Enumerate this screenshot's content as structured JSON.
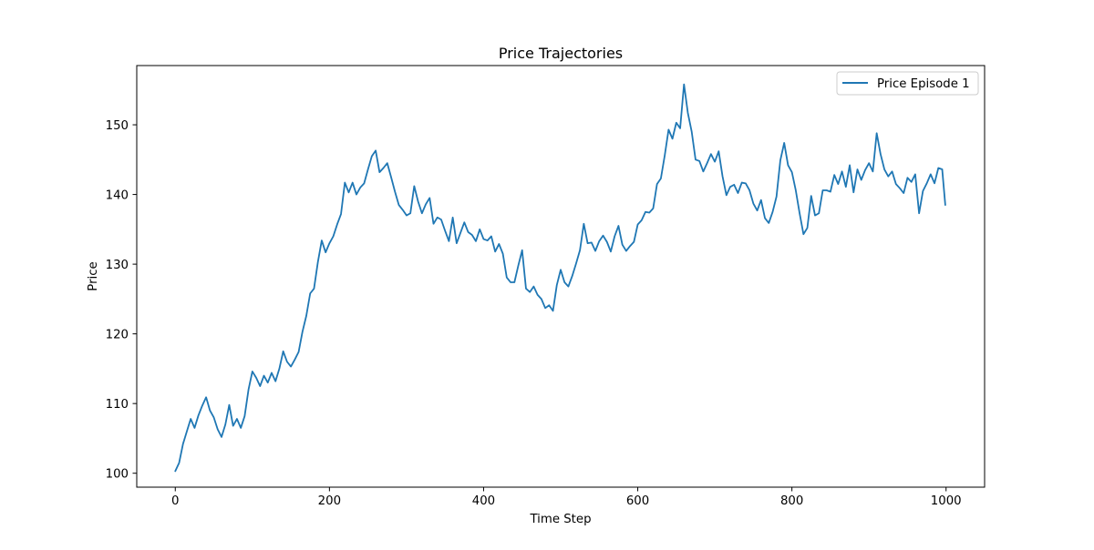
{
  "chart_data": {
    "type": "line",
    "title": "Price Trajectories",
    "xlabel": "Time Step",
    "ylabel": "Price",
    "xlim": [
      -50,
      1050
    ],
    "ylim": [
      98,
      158.5
    ],
    "x_ticks": [
      0,
      200,
      400,
      600,
      800,
      1000
    ],
    "y_ticks": [
      100,
      110,
      120,
      130,
      140,
      150
    ],
    "x_tick_labels": [
      "0",
      "200",
      "400",
      "600",
      "800",
      "1000"
    ],
    "y_tick_labels": [
      "100",
      "110",
      "120",
      "130",
      "140",
      "150"
    ],
    "grid": false,
    "legend_position": "upper right",
    "series": [
      {
        "name": "Price Episode 1",
        "color": "#1f77b4",
        "x": [
          0,
          5,
          10,
          15,
          20,
          25,
          30,
          35,
          40,
          45,
          50,
          55,
          60,
          65,
          70,
          75,
          80,
          85,
          90,
          95,
          100,
          105,
          110,
          115,
          120,
          125,
          130,
          135,
          140,
          145,
          150,
          155,
          160,
          165,
          170,
          175,
          180,
          185,
          190,
          195,
          200,
          205,
          210,
          215,
          220,
          225,
          230,
          235,
          240,
          245,
          250,
          255,
          260,
          265,
          270,
          275,
          280,
          285,
          290,
          295,
          300,
          305,
          310,
          315,
          320,
          325,
          330,
          335,
          340,
          345,
          350,
          355,
          360,
          365,
          370,
          375,
          380,
          385,
          390,
          395,
          400,
          405,
          410,
          415,
          420,
          425,
          430,
          435,
          440,
          445,
          450,
          455,
          460,
          465,
          470,
          475,
          480,
          485,
          490,
          495,
          500,
          505,
          510,
          515,
          520,
          525,
          530,
          535,
          540,
          545,
          550,
          555,
          560,
          565,
          570,
          575,
          580,
          585,
          590,
          595,
          600,
          605,
          610,
          615,
          620,
          625,
          630,
          635,
          640,
          645,
          650,
          655,
          660,
          665,
          670,
          675,
          680,
          685,
          690,
          695,
          700,
          705,
          710,
          715,
          720,
          725,
          730,
          735,
          740,
          745,
          750,
          755,
          760,
          765,
          770,
          775,
          780,
          785,
          790,
          795,
          800,
          805,
          810,
          815,
          820,
          825,
          830,
          835,
          840,
          845,
          850,
          855,
          860,
          865,
          870,
          875,
          880,
          885,
          890,
          895,
          900,
          905,
          910,
          915,
          920,
          925,
          930,
          935,
          940,
          945,
          950,
          955,
          960,
          965,
          970,
          975,
          980,
          985,
          990,
          995,
          999
        ],
        "y": [
          100.3,
          101.5,
          104.2,
          106.0,
          107.8,
          106.5,
          108.3,
          109.7,
          110.9,
          109.0,
          108.0,
          106.3,
          105.2,
          107.0,
          109.8,
          106.8,
          107.8,
          106.5,
          108.2,
          112.0,
          114.6,
          113.7,
          112.5,
          114.0,
          113.0,
          114.4,
          113.2,
          115.0,
          117.5,
          116.0,
          115.3,
          116.3,
          117.4,
          120.3,
          122.6,
          125.8,
          126.5,
          130.3,
          133.4,
          131.7,
          133.0,
          134.0,
          135.7,
          137.2,
          141.7,
          140.3,
          141.7,
          140.0,
          141.0,
          141.6,
          143.6,
          145.5,
          146.3,
          143.2,
          143.8,
          144.5,
          142.5,
          140.4,
          138.5,
          137.8,
          137.0,
          137.3,
          141.2,
          139.0,
          137.3,
          138.6,
          139.5,
          135.8,
          136.7,
          136.4,
          134.8,
          133.3,
          136.7,
          133.0,
          134.5,
          136.0,
          134.6,
          134.2,
          133.3,
          135.0,
          133.6,
          133.4,
          134.0,
          131.8,
          132.9,
          131.5,
          128.1,
          127.4,
          127.4,
          129.8,
          132.0,
          126.5,
          126.0,
          126.8,
          125.6,
          125.0,
          123.7,
          124.1,
          123.3,
          127.0,
          129.2,
          127.4,
          126.8,
          128.3,
          130.1,
          132.0,
          135.8,
          133.0,
          133.1,
          131.9,
          133.3,
          134.1,
          133.2,
          131.8,
          134.0,
          135.5,
          132.8,
          131.9,
          132.6,
          133.2,
          135.7,
          136.3,
          137.5,
          137.4,
          138.0,
          141.5,
          142.3,
          145.6,
          149.3,
          148.0,
          150.3,
          149.5,
          155.8,
          151.7,
          149.0,
          145.0,
          144.8,
          143.3,
          144.5,
          145.8,
          144.7,
          146.2,
          142.6,
          139.9,
          141.1,
          141.4,
          140.2,
          141.7,
          141.6,
          140.6,
          138.7,
          137.7,
          139.2,
          136.6,
          135.9,
          137.5,
          139.7,
          144.9,
          147.4,
          144.2,
          143.2,
          140.6,
          137.3,
          134.3,
          135.2,
          139.8,
          137.0,
          137.3,
          140.6,
          140.6,
          140.4,
          142.8,
          141.5,
          143.3,
          141.1,
          144.2,
          140.3,
          143.6,
          142.1,
          143.5,
          144.5,
          143.3,
          148.8,
          145.8,
          143.6,
          142.6,
          143.3,
          141.5,
          140.9,
          140.2,
          142.4,
          141.8,
          142.9,
          137.3,
          140.5,
          141.6,
          142.9,
          141.6,
          143.8,
          143.6,
          138.5
        ]
      }
    ]
  }
}
